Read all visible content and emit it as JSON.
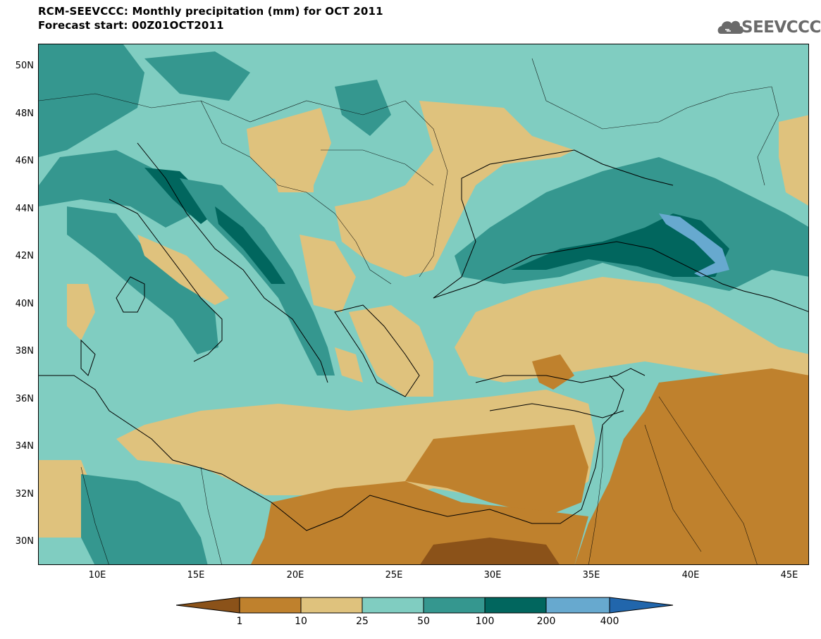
{
  "header": {
    "title_line1": "RCM-SEEVCCC: Monthly precipitation (mm) for OCT 2011",
    "title_line2": "Forecast start: 00Z01OCT2011",
    "logo_text": "SEEVCCC"
  },
  "map": {
    "lat_labels": [
      "50N",
      "48N",
      "46N",
      "44N",
      "42N",
      "40N",
      "38N",
      "36N",
      "34N",
      "32N",
      "30N"
    ],
    "lon_labels": [
      "10E",
      "15E",
      "20E",
      "25E",
      "30E",
      "35E",
      "40E",
      "45E"
    ],
    "lat_values": [
      50,
      48,
      46,
      44,
      42,
      40,
      38,
      36,
      34,
      32,
      30
    ],
    "lon_values": [
      10,
      15,
      20,
      25,
      30,
      35,
      40,
      45
    ],
    "lat_range": [
      29,
      51
    ],
    "lon_range": [
      7,
      46
    ]
  },
  "colorbar": {
    "labels": [
      "1",
      "10",
      "25",
      "50",
      "100",
      "200",
      "400"
    ],
    "colors": [
      "#8b5219",
      "#bf812d",
      "#dfc27d",
      "#80cdc1",
      "#35978f",
      "#01665e",
      "#67a9cf",
      "#2166ac"
    ]
  }
}
